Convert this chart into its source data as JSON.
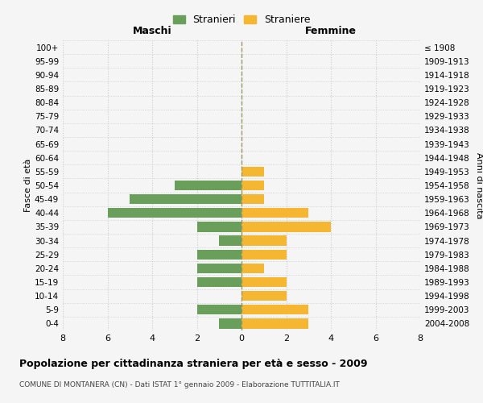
{
  "age_groups": [
    "0-4",
    "5-9",
    "10-14",
    "15-19",
    "20-24",
    "25-29",
    "30-34",
    "35-39",
    "40-44",
    "45-49",
    "50-54",
    "55-59",
    "60-64",
    "65-69",
    "70-74",
    "75-79",
    "80-84",
    "85-89",
    "90-94",
    "95-99",
    "100+"
  ],
  "birth_years": [
    "2004-2008",
    "1999-2003",
    "1994-1998",
    "1989-1993",
    "1984-1988",
    "1979-1983",
    "1974-1978",
    "1969-1973",
    "1964-1968",
    "1959-1963",
    "1954-1958",
    "1949-1953",
    "1944-1948",
    "1939-1943",
    "1934-1938",
    "1929-1933",
    "1924-1928",
    "1919-1923",
    "1914-1918",
    "1909-1913",
    "≤ 1908"
  ],
  "males": [
    1,
    2,
    0,
    2,
    2,
    2,
    1,
    2,
    6,
    5,
    3,
    0,
    0,
    0,
    0,
    0,
    0,
    0,
    0,
    0,
    0
  ],
  "females": [
    3,
    3,
    2,
    2,
    1,
    2,
    2,
    4,
    3,
    1,
    1,
    1,
    0,
    0,
    0,
    0,
    0,
    0,
    0,
    0,
    0
  ],
  "male_color": "#6a9e5b",
  "female_color": "#f5b731",
  "male_label": "Stranieri",
  "female_label": "Straniere",
  "title": "Popolazione per cittadinanza straniera per età e sesso - 2009",
  "subtitle": "COMUNE DI MONTANERA (CN) - Dati ISTAT 1° gennaio 2009 - Elaborazione TUTTITALIA.IT",
  "xlabel_left": "Maschi",
  "xlabel_right": "Femmine",
  "ylabel_left": "Fasce di età",
  "ylabel_right": "Anni di nascita",
  "xlim": 8,
  "background_color": "#f5f5f5",
  "grid_color": "#cccccc"
}
